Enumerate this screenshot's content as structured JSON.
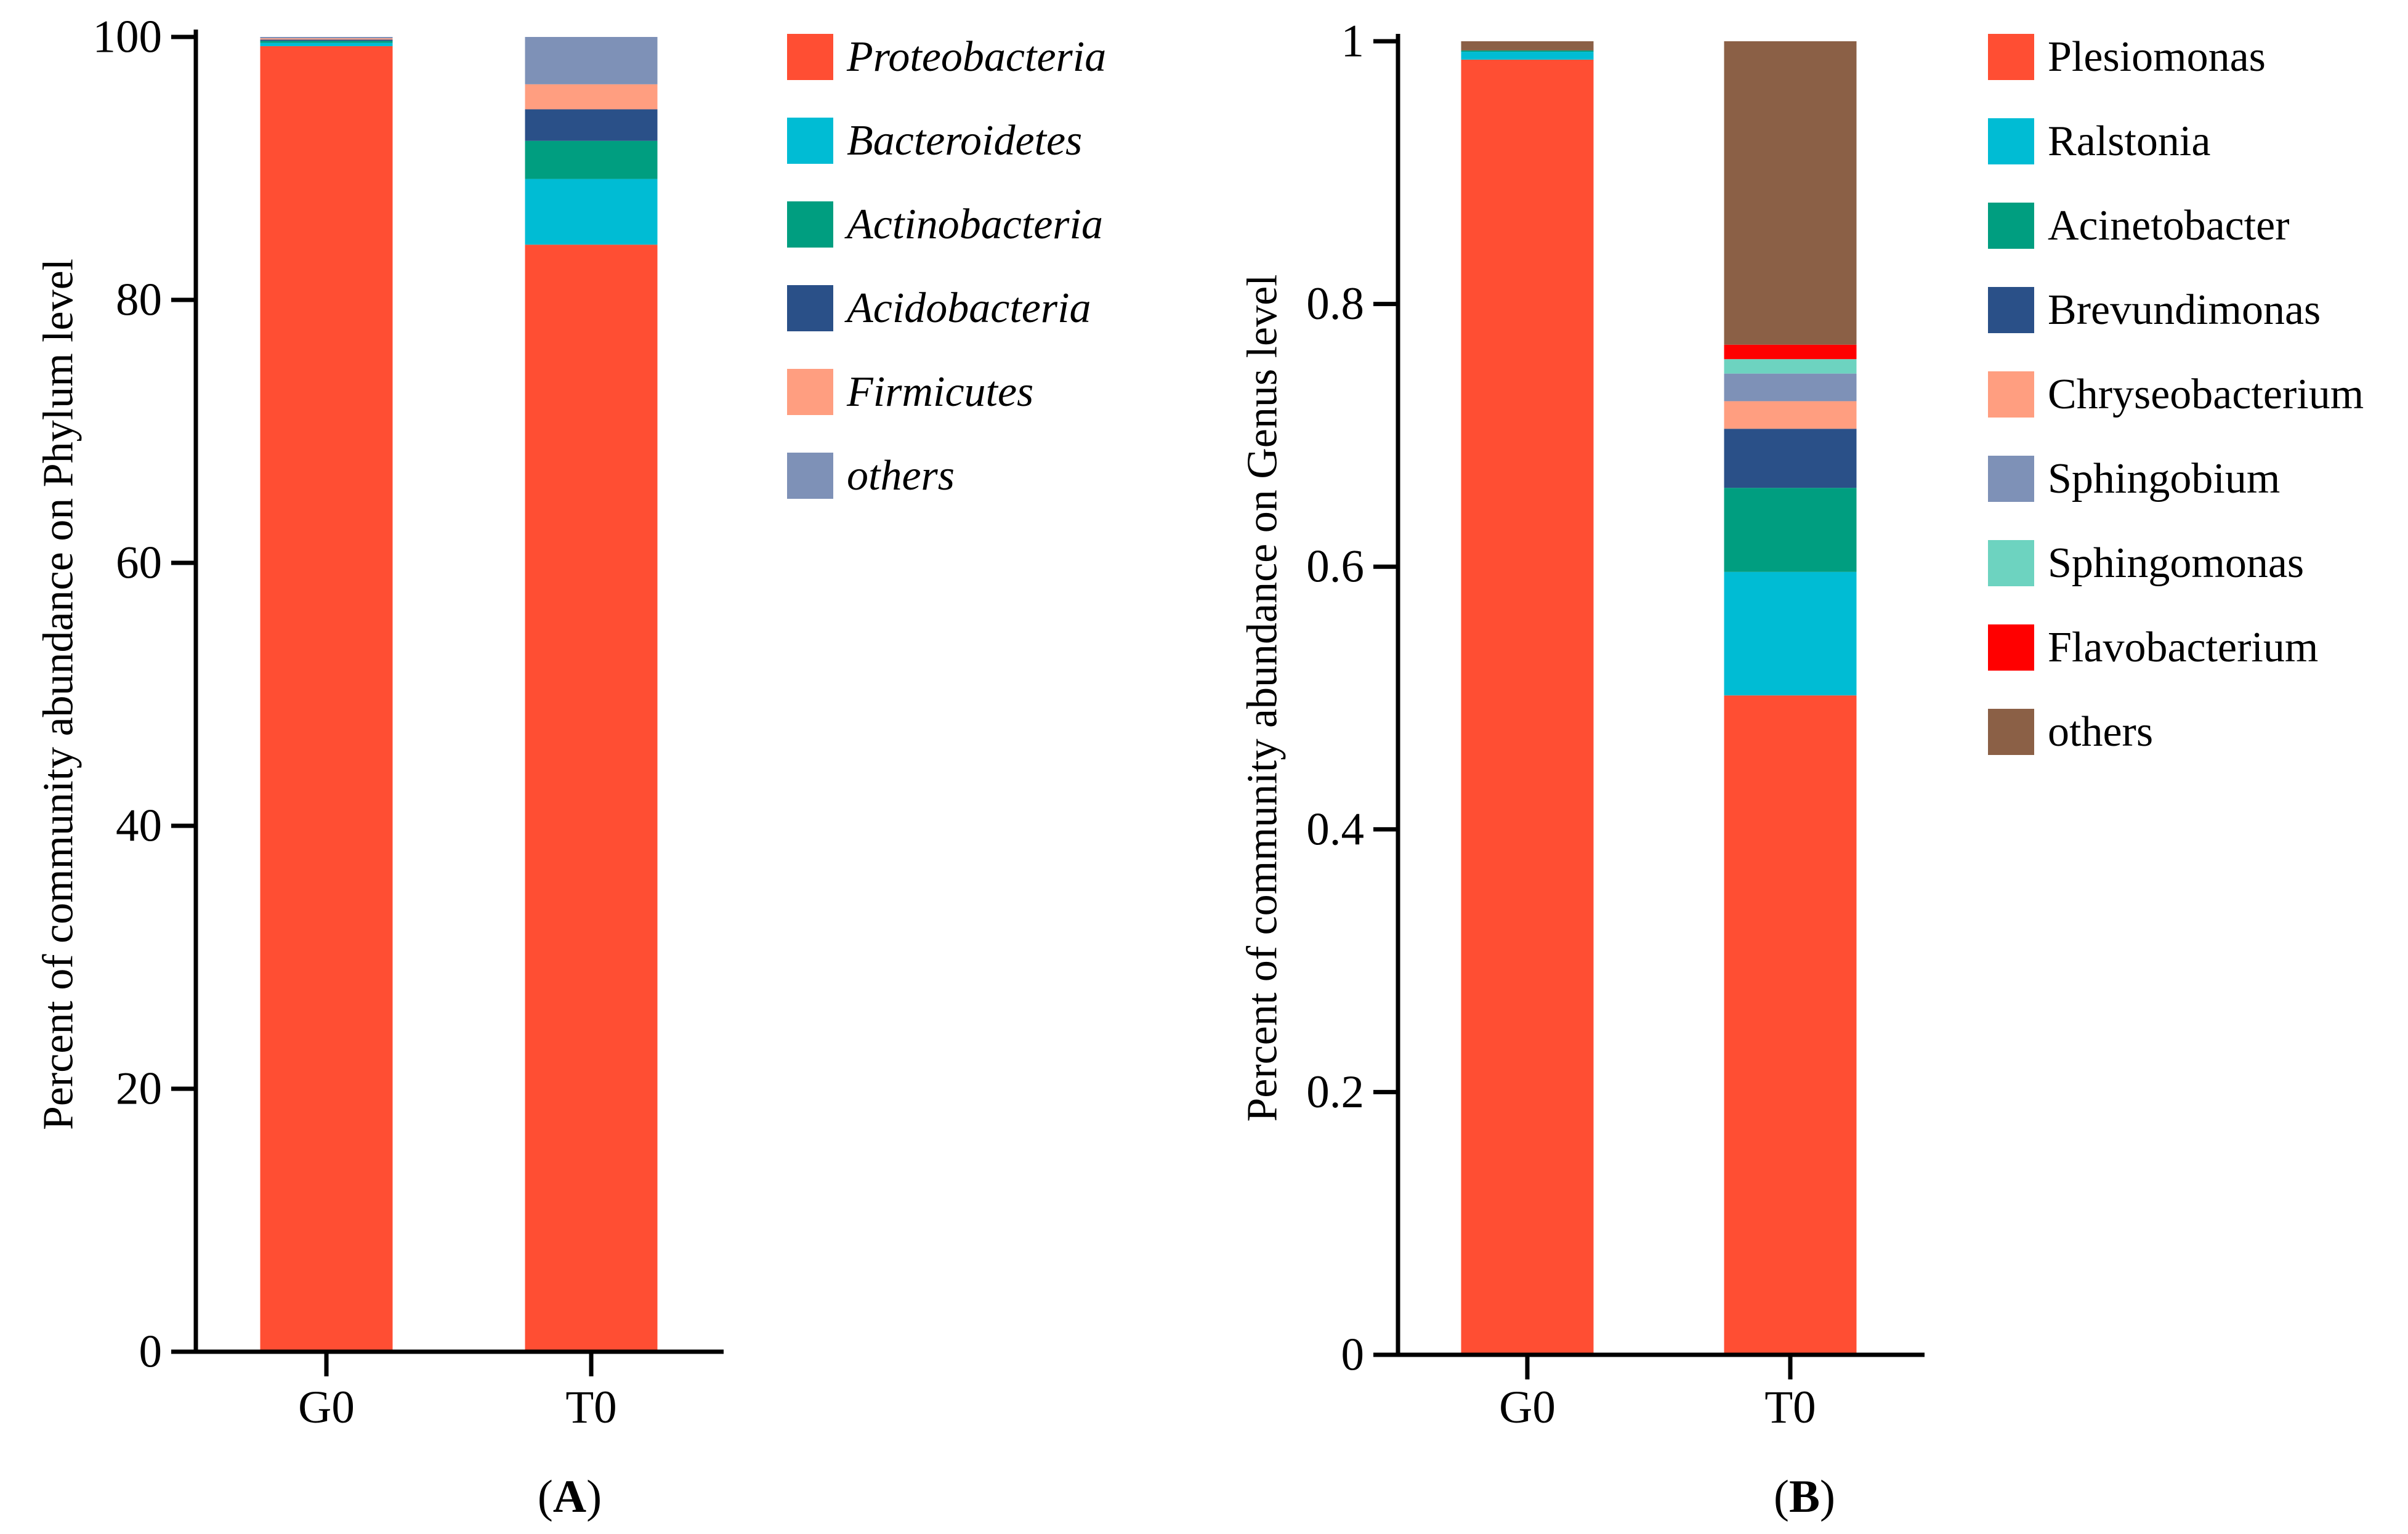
{
  "chart_data": [
    {
      "type": "bar",
      "stacked": true,
      "panel_label": "A",
      "categories": [
        "G0",
        "T0"
      ],
      "ylabel": "Percent of community abundance on Phylum level",
      "xlabel": "",
      "ylim": [
        0,
        100
      ],
      "yticks": [
        "0",
        "20",
        "40",
        "60",
        "80",
        "100"
      ],
      "legend_position": "right",
      "legend_italic": true,
      "series": [
        {
          "name": "Proteobacteria",
          "color": "#FF4E33",
          "values": [
            99.3,
            84.2
          ]
        },
        {
          "name": "Bacteroidetes",
          "color": "#00BCD4",
          "values": [
            0.25,
            5.0
          ]
        },
        {
          "name": "Actinobacteria",
          "color": "#009E80",
          "values": [
            0.15,
            2.9
          ]
        },
        {
          "name": "Acidobacteria",
          "color": "#2A5088",
          "values": [
            0.1,
            2.4
          ]
        },
        {
          "name": "Firmicutes",
          "color": "#FF9E80",
          "values": [
            0.1,
            1.9
          ]
        },
        {
          "name": "others",
          "color": "#7E91B7",
          "values": [
            0.1,
            3.6
          ]
        }
      ]
    },
    {
      "type": "bar",
      "stacked": true,
      "panel_label": "B",
      "categories": [
        "G0",
        "T0"
      ],
      "ylabel": "Percent of community abundance on Genus level",
      "xlabel": "",
      "ylim": [
        0,
        1
      ],
      "yticks": [
        "0",
        "0.2",
        "0.4",
        "0.6",
        "0.8",
        "1"
      ],
      "legend_position": "right",
      "legend_italic": false,
      "series": [
        {
          "name": "Plesiomonas",
          "color": "#FF4E33",
          "values": [
            0.986,
            0.502
          ]
        },
        {
          "name": "Ralstonia",
          "color": "#00BCD4",
          "values": [
            0.006,
            0.094
          ]
        },
        {
          "name": "Acinetobacter",
          "color": "#009E80",
          "values": [
            0.001,
            0.064
          ]
        },
        {
          "name": "Brevundimonas",
          "color": "#2A5088",
          "values": [
            0.0,
            0.045
          ]
        },
        {
          "name": "Chryseobacterium",
          "color": "#FF9E80",
          "values": [
            0.0,
            0.021
          ]
        },
        {
          "name": "Sphingobium",
          "color": "#7E91B7",
          "values": [
            0.0,
            0.021
          ]
        },
        {
          "name": "Sphingomonas",
          "color": "#6DD3C0",
          "values": [
            0.0,
            0.011
          ]
        },
        {
          "name": "Flavobacterium",
          "color": "#FF0000",
          "values": [
            0.0,
            0.011
          ]
        },
        {
          "name": "others",
          "color": "#8B6046",
          "values": [
            0.007,
            0.231
          ]
        }
      ]
    }
  ]
}
